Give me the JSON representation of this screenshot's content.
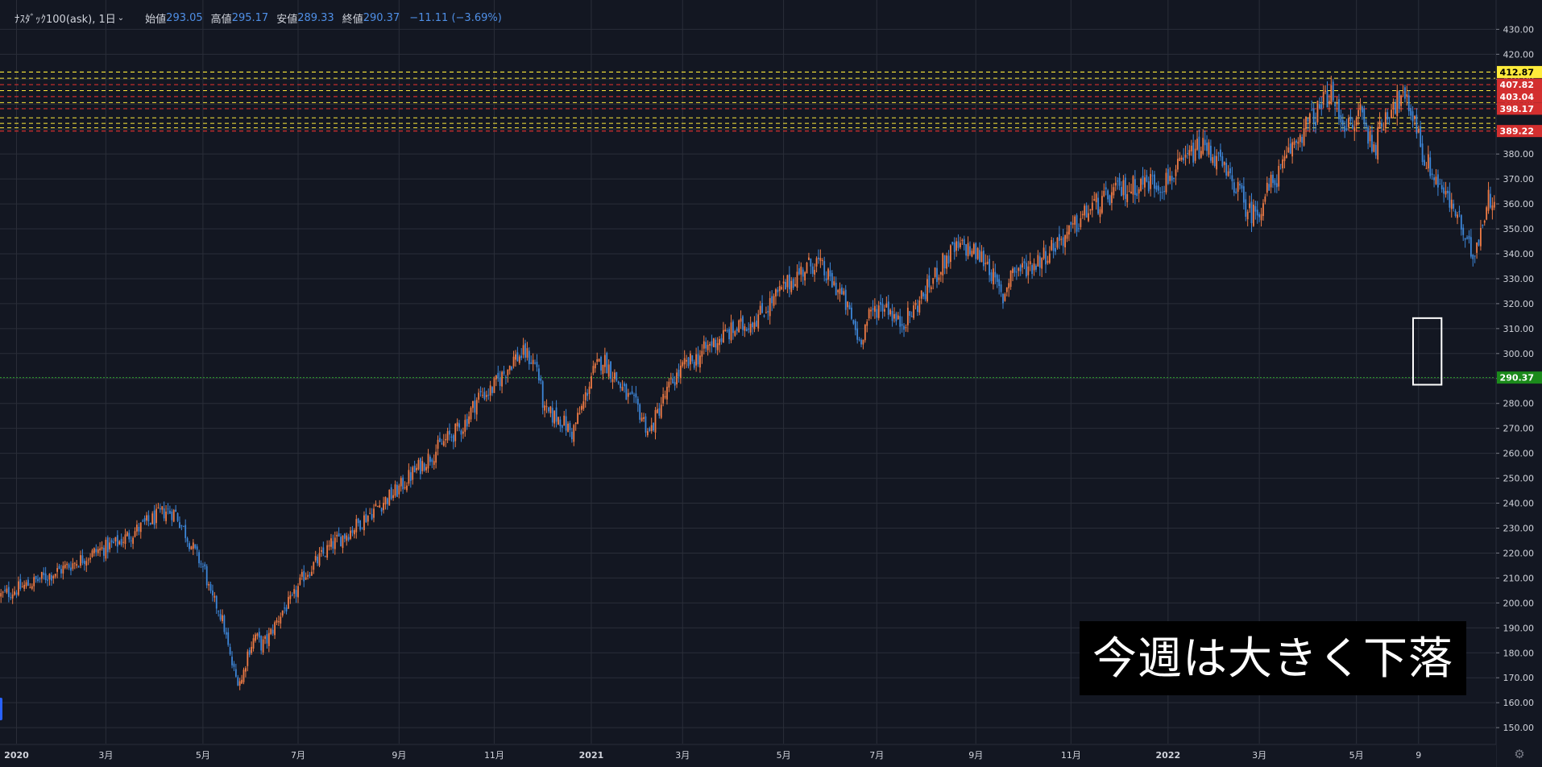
{
  "legend": {
    "symbol": "ﾅｽﾀﾞｯｸ100(ask), 1日",
    "open_label": "始値",
    "open_value": "293.05",
    "high_label": "高値",
    "high_value": "295.17",
    "low_label": "安値",
    "low_value": "289.33",
    "close_label": "終値",
    "close_value": "290.37",
    "change": "−11.11 (−3.69%)"
  },
  "annotation": "今週は大きく下落",
  "colors": {
    "background": "#131722",
    "grid": "#2a2e39",
    "axis_text": "#d1d4dc",
    "up": "#ef7b45",
    "down": "#3d86d8",
    "level_yellow": "#ffeb3b",
    "level_red": "#d32f2f",
    "last_price": "#1b8a1b"
  },
  "chart_data": {
    "type": "candlestick",
    "instrument": "ﾅｽﾀﾞｯｸ100(ask)",
    "timeframe": "1日",
    "ylim": [
      143,
      433
    ],
    "y_ticks": [
      150,
      160,
      170,
      180,
      190,
      200,
      210,
      220,
      230,
      240,
      250,
      260,
      270,
      280,
      290,
      300,
      310,
      320,
      330,
      340,
      350,
      360,
      370,
      380,
      390,
      400,
      410,
      420,
      430
    ],
    "x_tick_labels": [
      "2020",
      "3月",
      "5月",
      "7月",
      "9月",
      "11月",
      "2021",
      "3月",
      "5月",
      "7月",
      "9月",
      "11月",
      "2022",
      "3月",
      "5月",
      "9"
    ],
    "x_tick_index": [
      8,
      54,
      104,
      153,
      205,
      254,
      304,
      351,
      403,
      451,
      502,
      551,
      601,
      648,
      698,
      730
    ],
    "bars_count": 770,
    "closing_path": [
      [
        0,
        203
      ],
      [
        10,
        206
      ],
      [
        30,
        213
      ],
      [
        50,
        221
      ],
      [
        60,
        224
      ],
      [
        75,
        232
      ],
      [
        85,
        237
      ],
      [
        90,
        236
      ],
      [
        95,
        228
      ],
      [
        100,
        220
      ],
      [
        105,
        213
      ],
      [
        108,
        202
      ],
      [
        112,
        198
      ],
      [
        115,
        190
      ],
      [
        118,
        178
      ],
      [
        121,
        170
      ],
      [
        124,
        169
      ],
      [
        127,
        180
      ],
      [
        131,
        187
      ],
      [
        134,
        183
      ],
      [
        137,
        185
      ],
      [
        141,
        191
      ],
      [
        145,
        197
      ],
      [
        150,
        201
      ],
      [
        156,
        211
      ],
      [
        162,
        216
      ],
      [
        170,
        223
      ],
      [
        180,
        229
      ],
      [
        190,
        236
      ],
      [
        196,
        240
      ],
      [
        204,
        245
      ],
      [
        212,
        252
      ],
      [
        220,
        258
      ],
      [
        230,
        266
      ],
      [
        238,
        271
      ],
      [
        246,
        283
      ],
      [
        252,
        285
      ],
      [
        258,
        291
      ],
      [
        264,
        298
      ],
      [
        270,
        300
      ],
      [
        276,
        295
      ],
      [
        280,
        276
      ],
      [
        288,
        274
      ],
      [
        294,
        268
      ],
      [
        300,
        280
      ],
      [
        304,
        291
      ],
      [
        310,
        298
      ],
      [
        316,
        291
      ],
      [
        322,
        283
      ],
      [
        328,
        278
      ],
      [
        334,
        268
      ],
      [
        340,
        280
      ],
      [
        346,
        289
      ],
      [
        352,
        295
      ],
      [
        358,
        298
      ],
      [
        366,
        304
      ],
      [
        374,
        308
      ],
      [
        382,
        311
      ],
      [
        390,
        315
      ],
      [
        396,
        320
      ],
      [
        404,
        327
      ],
      [
        412,
        333
      ],
      [
        420,
        337
      ],
      [
        426,
        330
      ],
      [
        432,
        325
      ],
      [
        438,
        314
      ],
      [
        442,
        305
      ],
      [
        446,
        313
      ],
      [
        450,
        318
      ],
      [
        456,
        320
      ],
      [
        462,
        312
      ],
      [
        468,
        315
      ],
      [
        472,
        320
      ],
      [
        478,
        327
      ],
      [
        484,
        335
      ],
      [
        490,
        341
      ],
      [
        496,
        343
      ],
      [
        502,
        340
      ],
      [
        508,
        337
      ],
      [
        512,
        328
      ],
      [
        516,
        322
      ],
      [
        520,
        333
      ],
      [
        526,
        334
      ],
      [
        532,
        336
      ],
      [
        538,
        340
      ],
      [
        544,
        345
      ],
      [
        550,
        348
      ],
      [
        556,
        354
      ],
      [
        562,
        359
      ],
      [
        568,
        361
      ],
      [
        574,
        365
      ],
      [
        580,
        366
      ],
      [
        586,
        368
      ],
      [
        592,
        369
      ],
      [
        598,
        368
      ],
      [
        602,
        371
      ],
      [
        608,
        375
      ],
      [
        614,
        381
      ],
      [
        620,
        383
      ],
      [
        624,
        380
      ],
      [
        628,
        376
      ],
      [
        632,
        370
      ],
      [
        636,
        368
      ],
      [
        640,
        360
      ],
      [
        644,
        356
      ],
      [
        648,
        358
      ],
      [
        652,
        365
      ],
      [
        656,
        370
      ],
      [
        660,
        374
      ],
      [
        664,
        382
      ],
      [
        670,
        389
      ],
      [
        676,
        395
      ],
      [
        680,
        399
      ],
      [
        684,
        405
      ],
      [
        688,
        397
      ],
      [
        692,
        393
      ],
      [
        696,
        389
      ],
      [
        700,
        399
      ],
      [
        704,
        387
      ],
      [
        708,
        384
      ],
      [
        712,
        394
      ],
      [
        716,
        400
      ],
      [
        722,
        402
      ],
      [
        728,
        395
      ],
      [
        732,
        380
      ],
      [
        736,
        374
      ],
      [
        742,
        366
      ],
      [
        746,
        360
      ],
      [
        750,
        356
      ],
      [
        754,
        344
      ],
      [
        758,
        340
      ],
      [
        762,
        350
      ],
      [
        766,
        362
      ],
      [
        770,
        364
      ]
    ],
    "price_levels": [
      {
        "value": 412.87,
        "label": "412.87",
        "color": "yellow"
      },
      {
        "value": 407.82,
        "label": "407.82",
        "color": "red"
      },
      {
        "value": 403.04,
        "label": "403.04",
        "color": "red"
      },
      {
        "value": 398.17,
        "label": "398.17",
        "color": "red"
      },
      {
        "value": 389.22,
        "label": "389.22",
        "color": "red"
      }
    ],
    "extra_level_lines": [
      410.4,
      405.4,
      400.6,
      394.5,
      392.3,
      390.5
    ],
    "last_price": {
      "value": 290.37,
      "label": "290.37"
    },
    "highlight_box": {
      "from": 728,
      "to": 741,
      "low": 287.5,
      "high": 314.2
    }
  }
}
